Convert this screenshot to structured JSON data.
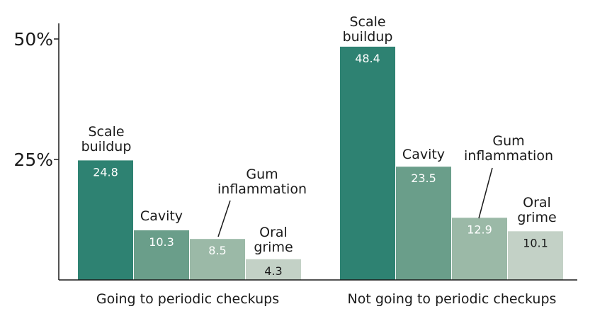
{
  "chart_data": {
    "type": "bar",
    "title": "",
    "xlabel": "",
    "ylabel": "",
    "ylim": [
      0,
      50
    ],
    "yticks": [
      {
        "value": 25,
        "label": "25%"
      },
      {
        "value": 50,
        "label": "50%"
      }
    ],
    "grid": false,
    "legend": "none",
    "categories": [
      "Going to periodic checkups",
      "Not going to periodic checkups"
    ],
    "series": [
      {
        "name": "Scale buildup",
        "label_lines": [
          "Scale",
          "buildup"
        ],
        "color": "#2e8272",
        "value_color": "#ffffff",
        "values": [
          24.8,
          48.4
        ]
      },
      {
        "name": "Cavity",
        "label_lines": [
          "Cavity"
        ],
        "color": "#6a9e8a",
        "value_color": "#ffffff",
        "values": [
          10.3,
          23.5
        ]
      },
      {
        "name": "Gum inflammation",
        "label_lines": [
          "Gum",
          "inflammation"
        ],
        "color": "#9bb9a7",
        "value_color": "#ffffff",
        "values": [
          8.5,
          12.9
        ]
      },
      {
        "name": "Oral grime",
        "label_lines": [
          "Oral",
          "grime"
        ],
        "color": "#c3d1c6",
        "value_color": "#1a1a1a",
        "values": [
          4.3,
          10.1
        ]
      }
    ]
  }
}
